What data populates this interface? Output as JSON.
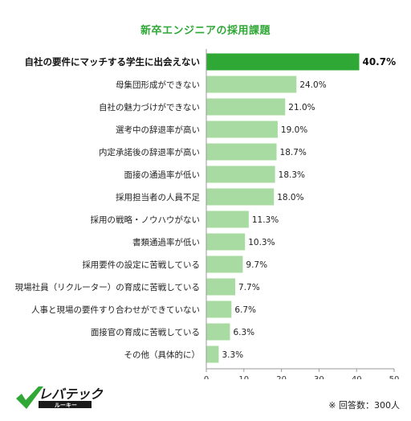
{
  "chart_data": {
    "type": "bar",
    "orientation": "horizontal",
    "title": "新卒エンジニアの採用課題",
    "categories": [
      "自社の要件にマッチする学生に出会えない",
      "母集団形成ができない",
      "自社の魅力づけができない",
      "選考中の辞退率が高い",
      "内定承諾後の辞退率が高い",
      "面接の通過率が低い",
      "採用担当者の人員不足",
      "採用の戦略・ノウハウがない",
      "書類通過率が低い",
      "採用要件の設定に苦戦している",
      "現場社員（リクルーター）の育成に苦戦している",
      "人事と現場の要件すり合わせができていない",
      "面接官の育成に苦戦している",
      "その他（具体的に）"
    ],
    "values": [
      40.7,
      24.0,
      21.0,
      19.0,
      18.7,
      18.3,
      18.0,
      11.3,
      10.3,
      9.7,
      7.7,
      6.7,
      6.3,
      3.3
    ],
    "value_labels": [
      "40.7%",
      "24.0%",
      "21.0%",
      "19.0%",
      "18.7%",
      "18.3%",
      "18.0%",
      "11.3%",
      "10.3%",
      "9.7%",
      "7.7%",
      "6.7%",
      "6.3%",
      "3.3%"
    ],
    "xlim": [
      0,
      50
    ],
    "xticks": [
      0,
      10,
      20,
      30,
      40,
      50
    ],
    "highlight_index": 0,
    "colors": {
      "highlight": "#2fa836",
      "bar": "#a8dba2",
      "axis": "#999999"
    }
  },
  "footnote": "※ 回答数：300人",
  "logo": {
    "name": "レバテック",
    "sub": "ルーキー",
    "colors": {
      "mark": "#2fa836",
      "text": "#1a1a1a"
    }
  }
}
